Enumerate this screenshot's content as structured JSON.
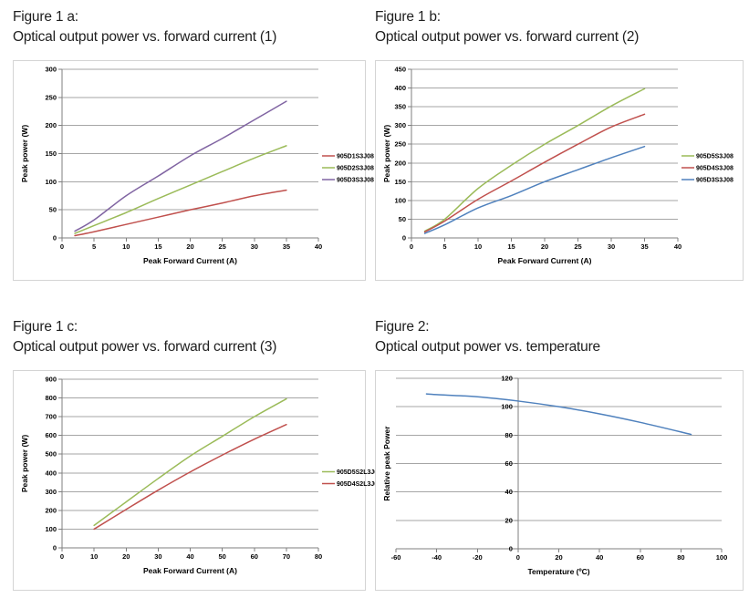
{
  "colors": {
    "gridline": "#A6A6A6",
    "axis": "#7F7F7F",
    "box_border": "#D4D4D4",
    "series_red": "#C0504D",
    "series_green": "#9BBB59",
    "series_purple": "#8064A2",
    "series_blue": "#4F81BD"
  },
  "chart_data": [
    {
      "id": "figure-1a",
      "type": "line",
      "caption_line1": "Figure 1 a:",
      "caption_line2": "Optical output power vs. forward current (1)",
      "xlabel": "Peak Forward Current (A)",
      "ylabel": "Peak power (W)",
      "xlim": [
        0,
        40
      ],
      "ylim": [
        0,
        300
      ],
      "xticks": [
        0,
        5,
        10,
        15,
        20,
        25,
        30,
        35,
        40
      ],
      "yticks": [
        0,
        50,
        100,
        150,
        200,
        250,
        300
      ],
      "grid": "horizontal",
      "legend_position": "right",
      "x": [
        2,
        5,
        10,
        15,
        20,
        25,
        30,
        35
      ],
      "series": [
        {
          "name": "905D1S3J08",
          "color": "#C0504D",
          "values": [
            4,
            11,
            24,
            37,
            50,
            62,
            75,
            85
          ]
        },
        {
          "name": "905D2S3J08",
          "color": "#9BBB59",
          "values": [
            8,
            22,
            45,
            70,
            94,
            118,
            142,
            164
          ]
        },
        {
          "name": "905D3S3J08",
          "color": "#8064A2",
          "values": [
            12,
            32,
            75,
            110,
            146,
            177,
            210,
            243
          ]
        }
      ]
    },
    {
      "id": "figure-1b",
      "type": "line",
      "caption_line1": "Figure 1 b:",
      "caption_line2": "Optical output power vs. forward current (2)",
      "xlabel": "Peak Forward Current (A)",
      "ylabel": "Peak power (W)",
      "xlim": [
        0,
        40
      ],
      "ylim": [
        0,
        450
      ],
      "xticks": [
        0,
        5,
        10,
        15,
        20,
        25,
        30,
        35,
        40
      ],
      "yticks": [
        0,
        50,
        100,
        150,
        200,
        250,
        300,
        350,
        400,
        450
      ],
      "grid": "horizontal",
      "legend_position": "right",
      "x": [
        2,
        5,
        10,
        15,
        20,
        25,
        30,
        35
      ],
      "series": [
        {
          "name": "905D5S3J08",
          "color": "#9BBB59",
          "values": [
            18,
            50,
            132,
            194,
            250,
            300,
            352,
            398
          ]
        },
        {
          "name": "905D4S3J08",
          "color": "#C0504D",
          "values": [
            16,
            45,
            103,
            152,
            202,
            250,
            296,
            330
          ]
        },
        {
          "name": "905D3S3J08",
          "color": "#4F81BD",
          "values": [
            12,
            35,
            80,
            113,
            150,
            182,
            214,
            244
          ]
        }
      ]
    },
    {
      "id": "figure-1c",
      "type": "line",
      "caption_line1": "Figure 1 c:",
      "caption_line2": "Optical output power vs. forward current (3)",
      "xlabel": "Peak Forward Current (A)",
      "ylabel": "Peak power (W)",
      "xlim": [
        0,
        80
      ],
      "ylim": [
        0,
        900
      ],
      "xticks": [
        0,
        10,
        20,
        30,
        40,
        50,
        60,
        70,
        80
      ],
      "yticks": [
        0,
        100,
        200,
        300,
        400,
        500,
        600,
        700,
        800,
        900
      ],
      "grid": "horizontal",
      "legend_position": "right",
      "x": [
        10,
        20,
        30,
        40,
        50,
        60,
        70
      ],
      "series": [
        {
          "name": "905D5S2L3J08",
          "color": "#9BBB59",
          "values": [
            120,
            245,
            370,
            490,
            595,
            700,
            795
          ]
        },
        {
          "name": "905D4S2L3J08",
          "color": "#C0504D",
          "values": [
            100,
            205,
            308,
            405,
            495,
            580,
            658
          ]
        }
      ]
    },
    {
      "id": "figure-2",
      "type": "line",
      "caption_line1": "Figure 2:",
      "caption_line2": "Optical output power vs. temperature",
      "xlabel": "Temperature  (ºC)",
      "ylabel": "Relative peak Power",
      "xlim": [
        -60,
        100
      ],
      "ylim": [
        0,
        120
      ],
      "xticks": [
        -60,
        -40,
        -20,
        0,
        20,
        40,
        60,
        80,
        100
      ],
      "yticks": [
        0,
        20,
        40,
        60,
        80,
        100,
        120
      ],
      "grid": "horizontal",
      "axis_x": 0,
      "legend_position": "none",
      "x": [
        -45,
        -40,
        -20,
        0,
        20,
        40,
        60,
        85
      ],
      "series": [
        {
          "name": "",
          "color": "#4F81BD",
          "values": [
            109,
            108.5,
            107,
            104,
            100,
            95,
            89,
            80.5
          ]
        }
      ]
    }
  ]
}
